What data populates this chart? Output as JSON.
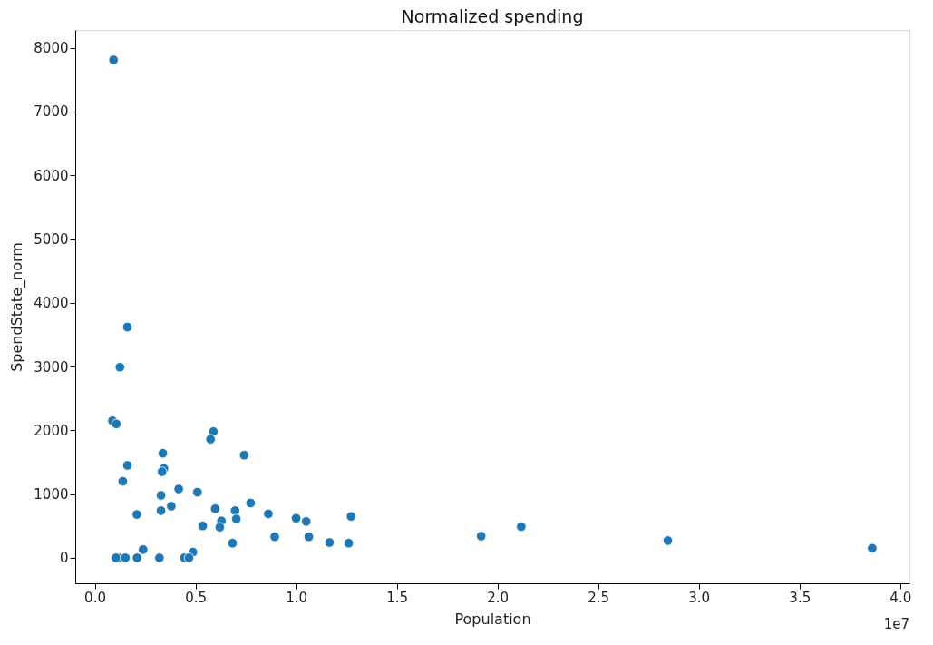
{
  "chart_data": {
    "type": "scatter",
    "title": "Normalized spending",
    "xlabel": "Population",
    "ylabel": "SpendState_norm",
    "annotations": [
      "1e7"
    ],
    "x": [
      0.093,
      0.162,
      0.125,
      0.088,
      0.107,
      0.589,
      0.575,
      0.742,
      0.338,
      0.162,
      0.343,
      0.334,
      0.139,
      0.417,
      0.51,
      0.329,
      0.38,
      0.774,
      0.329,
      0.209,
      0.598,
      0.862,
      1.0,
      1.05,
      1.273,
      0.697,
      0.703,
      0.629,
      0.621,
      0.536,
      0.684,
      0.894,
      1.063,
      1.166,
      1.261,
      0.24,
      0.487,
      0.12,
      0.105,
      0.152,
      0.21,
      0.321,
      0.445,
      0.468,
      1.919,
      2.118,
      2.846,
      3.861
    ],
    "values": [
      7810,
      3620,
      2990,
      2150,
      2100,
      1980,
      1860,
      1610,
      1640,
      1450,
      1400,
      1350,
      1200,
      1080,
      1030,
      980,
      810,
      860,
      740,
      680,
      770,
      690,
      620,
      570,
      650,
      740,
      610,
      580,
      480,
      500,
      230,
      330,
      330,
      240,
      230,
      130,
      90,
      0,
      0,
      0,
      0,
      0,
      0,
      0,
      340,
      490,
      270,
      150
    ],
    "color": "#1f77b4",
    "marker": "circle",
    "grid": false,
    "xlim": [
      -0.097,
      4.046
    ],
    "ylim": [
      -400,
      8280
    ],
    "xticks": [
      {
        "value": 0,
        "label": "0.0"
      },
      0.5,
      {
        "value": 1,
        "label": "1.0"
      },
      1.5,
      {
        "value": 2,
        "label": "2.0"
      },
      2.5,
      {
        "value": 3,
        "label": "3.0"
      },
      3.5,
      {
        "value": 4,
        "label": "4.0"
      }
    ],
    "yticks": [
      0,
      1000,
      2000,
      3000,
      4000,
      5000,
      6000,
      7000,
      8000
    ]
  }
}
